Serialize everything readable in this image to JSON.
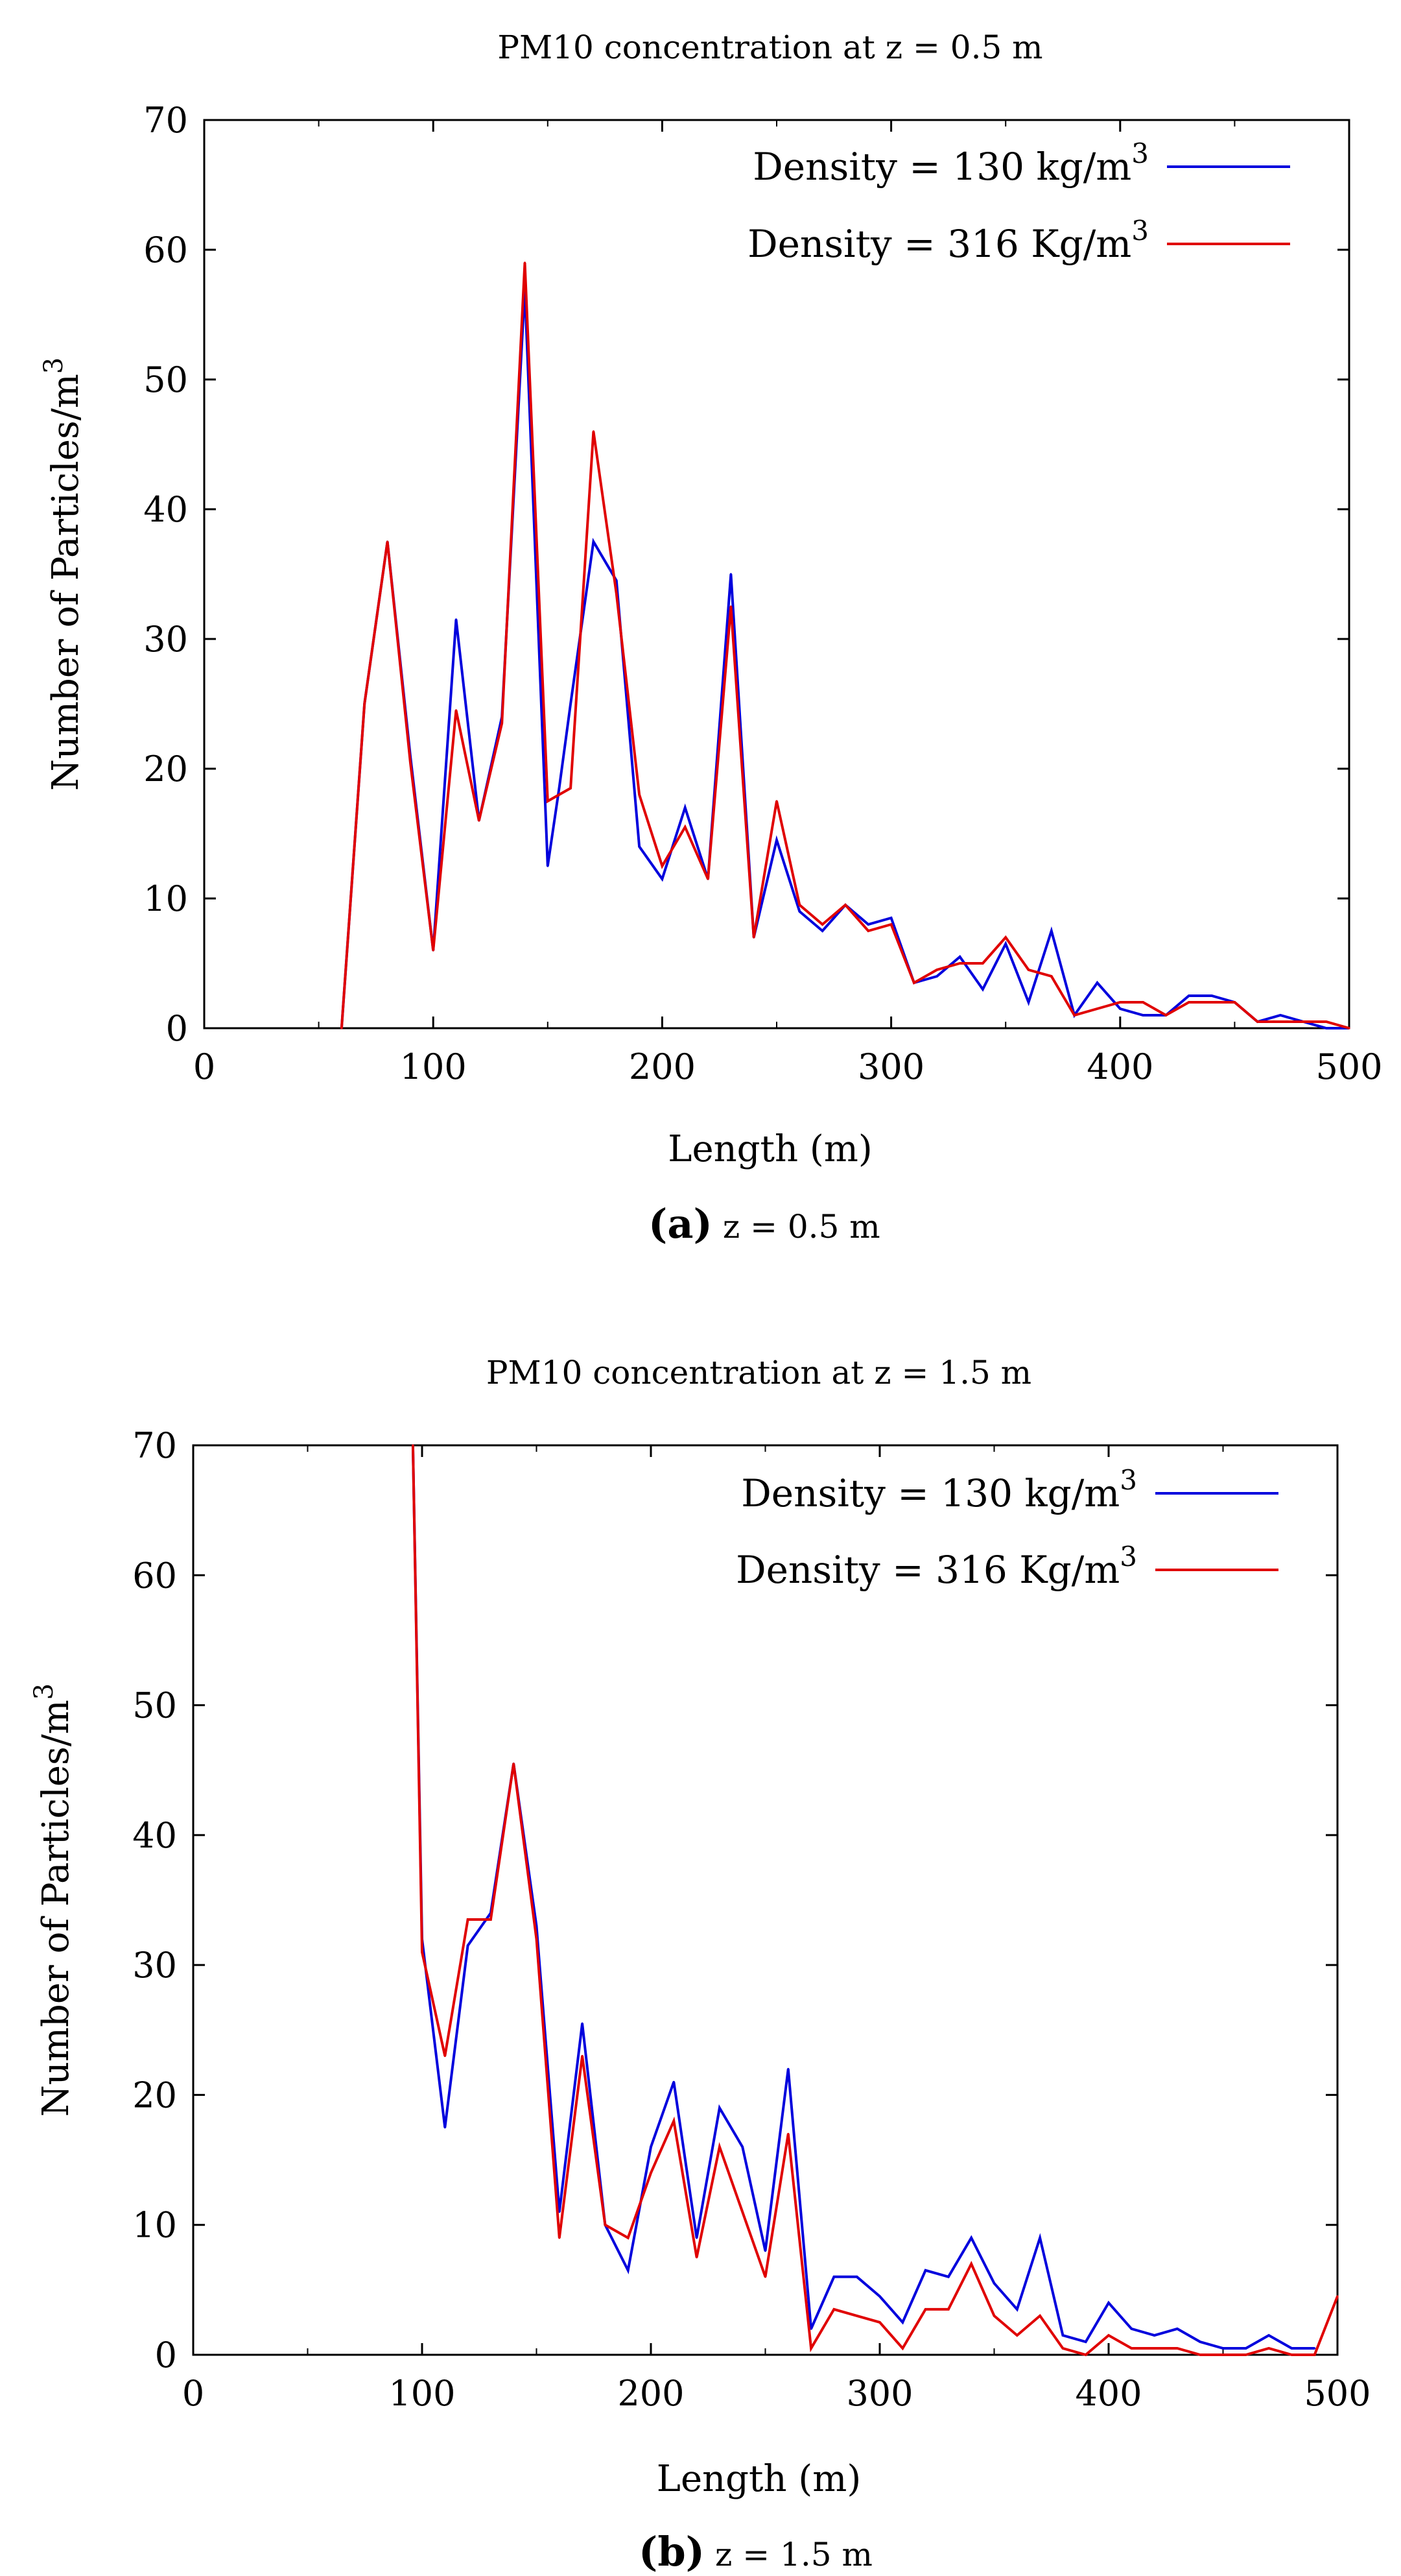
{
  "colors": {
    "series_blue": "#0000dd",
    "series_red": "#e00000",
    "axis": "#000000",
    "background": "#ffffff"
  },
  "chart_data": [
    {
      "type": "line",
      "title": "PM10 concentration at z = 0.5 m",
      "xlabel": "Length (m)",
      "ylabel": "Number of Particles/m",
      "ylabel_superscript": "3",
      "xlim": [
        0,
        500
      ],
      "ylim": [
        0,
        70
      ],
      "x_ticks": [
        "0",
        "100",
        "200",
        "300",
        "400",
        "500"
      ],
      "y_ticks": [
        "0",
        "10",
        "20",
        "30",
        "40",
        "50",
        "60",
        "70"
      ],
      "grid": false,
      "legend_position": "top-right",
      "caption_label": "(a)",
      "caption_text": "z = 0.5 m",
      "series": [
        {
          "name": "Density = 130 kg/m",
          "name_superscript": "3",
          "color": "#0000dd",
          "x": [
            60,
            70,
            80,
            90,
            100,
            110,
            120,
            130,
            140,
            150,
            155,
            160,
            170,
            180,
            190,
            200,
            210,
            220,
            230,
            240,
            250,
            260,
            270,
            280,
            290,
            300,
            310,
            320,
            330,
            340,
            350,
            360,
            370,
            380,
            390,
            400,
            410,
            420,
            430,
            440,
            450,
            460,
            470,
            480,
            490,
            500
          ],
          "values": [
            0,
            25,
            37.5,
            21,
            6,
            31.5,
            16,
            24,
            57,
            12.5,
            18.5,
            25,
            37.5,
            34.5,
            14,
            11.5,
            17,
            11.5,
            35,
            7,
            14.5,
            9,
            7.5,
            9.5,
            8,
            8.5,
            3.5,
            4,
            5.5,
            3,
            6.5,
            2,
            7.5,
            1,
            3.5,
            1.5,
            1,
            1,
            2.5,
            2.5,
            2,
            0.5,
            1,
            0.5,
            0,
            0
          ]
        },
        {
          "name": "Density = 316 Kg/m",
          "name_superscript": "3",
          "color": "#e00000",
          "x": [
            60,
            70,
            80,
            90,
            100,
            110,
            120,
            130,
            140,
            150,
            160,
            170,
            180,
            190,
            200,
            210,
            220,
            230,
            240,
            250,
            260,
            270,
            280,
            290,
            300,
            310,
            320,
            330,
            340,
            350,
            360,
            370,
            380,
            390,
            400,
            410,
            420,
            430,
            440,
            450,
            460,
            470,
            480,
            490,
            500
          ],
          "values": [
            0,
            25,
            37.5,
            20.5,
            6,
            24.5,
            16,
            23.5,
            59,
            17.5,
            18.5,
            46,
            33.5,
            18,
            12.5,
            15.5,
            11.5,
            32.5,
            7,
            17.5,
            9.5,
            8,
            9.5,
            7.5,
            8,
            3.5,
            4.5,
            5,
            5,
            7,
            4.5,
            4,
            1,
            1.5,
            2,
            2,
            1,
            2,
            2,
            2,
            0.5,
            0.5,
            0.5,
            0.5,
            0
          ]
        }
      ]
    },
    {
      "type": "line",
      "title": "PM10 concentration at z = 1.5 m",
      "xlabel": "Length (m)",
      "ylabel": "Number of Particles/m",
      "ylabel_superscript": "3",
      "xlim": [
        0,
        500
      ],
      "ylim": [
        0,
        70
      ],
      "x_ticks": [
        "0",
        "100",
        "200",
        "300",
        "400",
        "500"
      ],
      "y_ticks": [
        "0",
        "10",
        "20",
        "30",
        "40",
        "50",
        "60",
        "70"
      ],
      "grid": false,
      "legend_position": "top-right",
      "caption_label": "(b)",
      "caption_text": "z = 1.5 m",
      "series": [
        {
          "name": "Density = 130 kg/m",
          "name_superscript": "3",
          "color": "#0000dd",
          "x": [
            96,
            100,
            110,
            120,
            130,
            140,
            150,
            160,
            170,
            180,
            190,
            200,
            210,
            220,
            230,
            240,
            250,
            260,
            270,
            280,
            290,
            300,
            310,
            320,
            330,
            340,
            350,
            360,
            370,
            380,
            390,
            400,
            410,
            420,
            430,
            440,
            450,
            460,
            470,
            480,
            490
          ],
          "values": [
            70,
            32,
            17.5,
            31.5,
            34,
            45.5,
            33,
            11,
            25.5,
            10,
            6.5,
            16,
            21,
            9,
            19,
            16,
            8,
            22,
            2,
            6,
            6,
            4.5,
            2.5,
            6.5,
            6,
            9,
            5.5,
            3.5,
            9,
            1.5,
            1,
            4,
            2,
            1.5,
            2,
            1,
            0.5,
            0.5,
            1.5,
            0.5,
            0.5
          ]
        },
        {
          "name": "Density = 316 Kg/m",
          "name_superscript": "3",
          "color": "#e00000",
          "x": [
            96,
            100,
            110,
            120,
            130,
            140,
            150,
            160,
            170,
            180,
            190,
            200,
            210,
            220,
            230,
            240,
            250,
            260,
            270,
            280,
            290,
            300,
            310,
            320,
            330,
            340,
            350,
            360,
            370,
            380,
            390,
            400,
            410,
            420,
            430,
            440,
            450,
            460,
            470,
            480,
            490,
            500
          ],
          "values": [
            70,
            31,
            23,
            33.5,
            33.5,
            45.5,
            32,
            9,
            23,
            10,
            9,
            14,
            18,
            7.5,
            16,
            11,
            6,
            17,
            0.5,
            3.5,
            3,
            2.5,
            0.5,
            3.5,
            3.5,
            7,
            3,
            1.5,
            3,
            0.5,
            0,
            1.5,
            0.5,
            0.5,
            0.5,
            0,
            0,
            0,
            0.5,
            0,
            0,
            4.5
          ]
        }
      ]
    }
  ]
}
